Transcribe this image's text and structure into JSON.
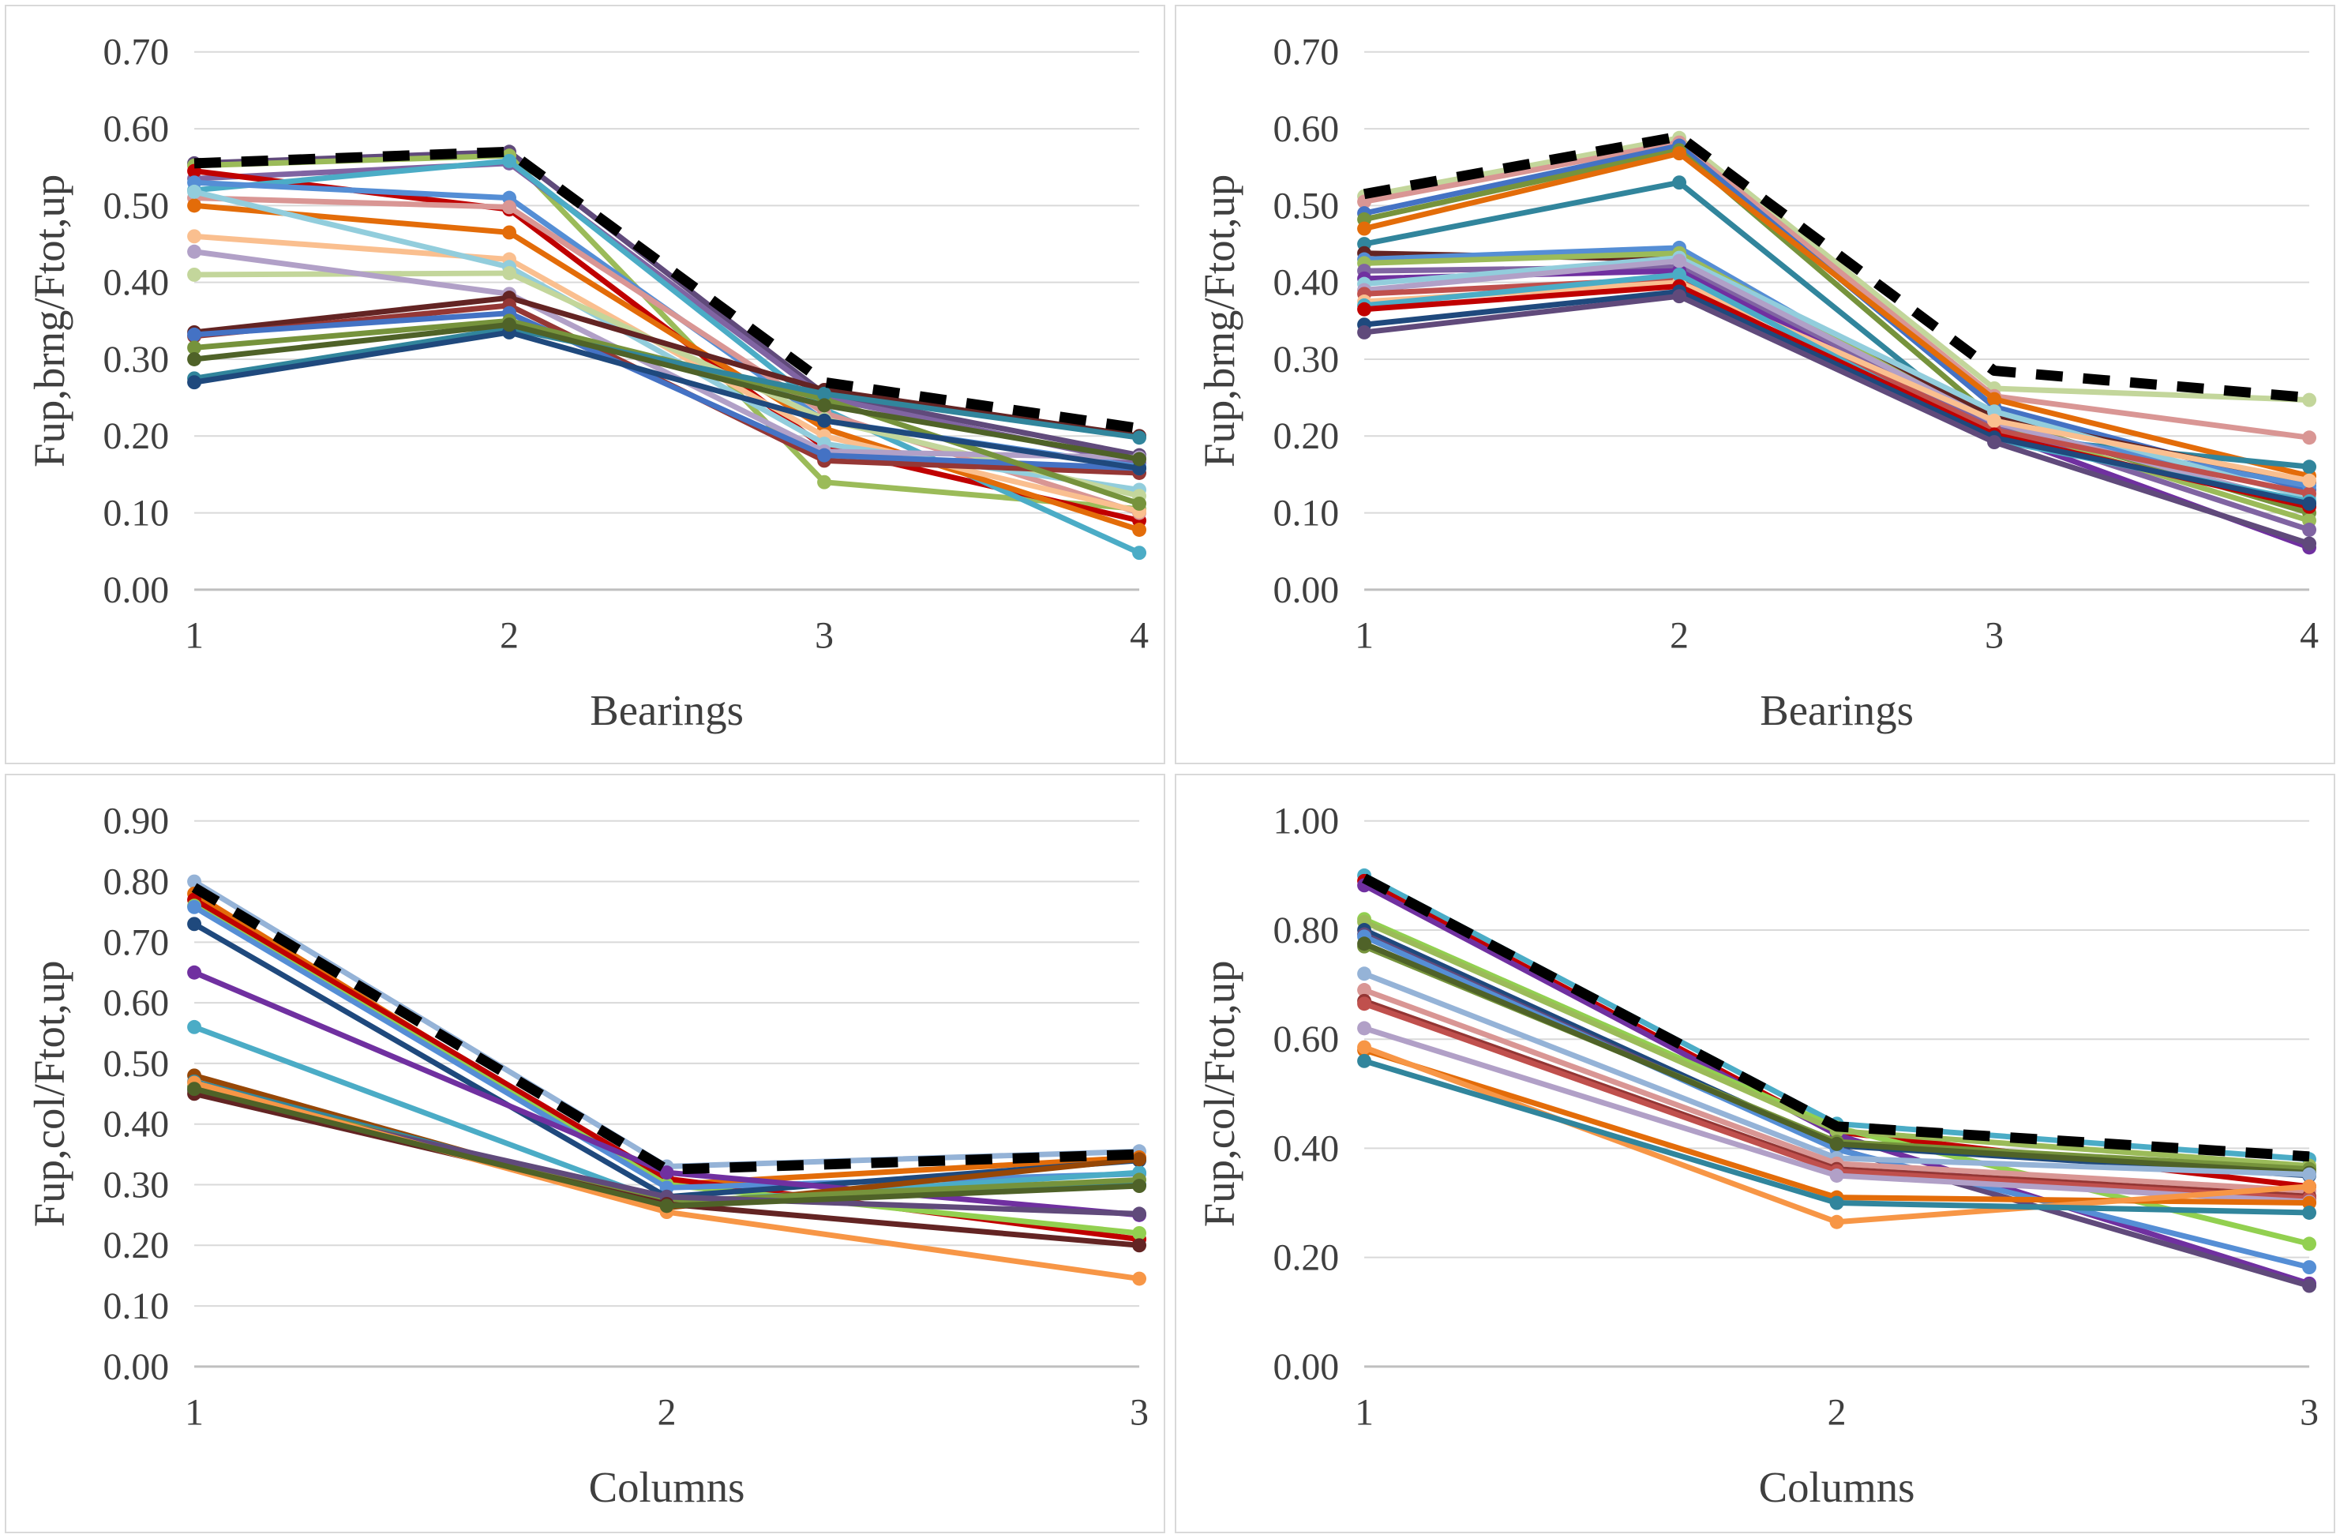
{
  "accent_colors": {
    "gridline": "#d9d9d9",
    "axis_line": "#bfbfbf",
    "envelope": "#000000",
    "panel_border": "#d9d9d9",
    "text": "#3f3f3f"
  },
  "chart_data": [
    {
      "type": "line",
      "position": "top-left",
      "title": "",
      "xlabel": "Bearings",
      "ylabel": "Fup,brng/Ftot,up",
      "x": [
        1,
        2,
        3,
        4
      ],
      "x_tick_labels": [
        "1",
        "2",
        "3",
        "4"
      ],
      "y_tick_labels": [
        "0.00",
        "0.10",
        "0.20",
        "0.30",
        "0.40",
        "0.50",
        "0.60",
        "0.70"
      ],
      "ylim": [
        0.0,
        0.7
      ],
      "grid": true,
      "legend": "none",
      "envelope": {
        "style": "dashed",
        "color": "#000000",
        "values": [
          0.555,
          0.57,
          0.27,
          0.21
        ]
      },
      "series": [
        {
          "color": "#604A7B",
          "values": [
            0.555,
            0.57,
            0.255,
            0.175
          ]
        },
        {
          "color": "#9BBB59",
          "values": [
            0.552,
            0.565,
            0.14,
            0.105
          ]
        },
        {
          "color": "#8064A2",
          "values": [
            0.535,
            0.555,
            0.25,
            0.165
          ]
        },
        {
          "color": "#C00000",
          "values": [
            0.545,
            0.495,
            0.185,
            0.09
          ]
        },
        {
          "color": "#4BACC6",
          "values": [
            0.52,
            0.558,
            0.235,
            0.048
          ]
        },
        {
          "color": "#558ED5",
          "values": [
            0.53,
            0.51,
            0.22,
            0.16
          ]
        },
        {
          "color": "#D99694",
          "values": [
            0.51,
            0.498,
            0.23,
            0.1
          ]
        },
        {
          "color": "#E36C09",
          "values": [
            0.5,
            0.465,
            0.21,
            0.078
          ]
        },
        {
          "color": "#FABF8F",
          "values": [
            0.46,
            0.43,
            0.2,
            0.102
          ]
        },
        {
          "color": "#92CDDC",
          "values": [
            0.518,
            0.42,
            0.19,
            0.13
          ]
        },
        {
          "color": "#C3D69B",
          "values": [
            0.41,
            0.412,
            0.222,
            0.122
          ]
        },
        {
          "color": "#B1A0C7",
          "values": [
            0.44,
            0.385,
            0.18,
            0.172
          ]
        },
        {
          "color": "#632423",
          "values": [
            0.335,
            0.38,
            0.26,
            0.2
          ]
        },
        {
          "color": "#953735",
          "values": [
            0.33,
            0.37,
            0.168,
            0.152
          ]
        },
        {
          "color": "#4472C4",
          "values": [
            0.332,
            0.36,
            0.175,
            0.158
          ]
        },
        {
          "color": "#76933C",
          "values": [
            0.315,
            0.35,
            0.248,
            0.112
          ]
        },
        {
          "color": "#31859C",
          "values": [
            0.275,
            0.34,
            0.255,
            0.198
          ]
        },
        {
          "color": "#1F497D",
          "values": [
            0.27,
            0.335,
            0.22,
            0.158
          ]
        },
        {
          "color": "#4F6228",
          "values": [
            0.3,
            0.345,
            0.24,
            0.17
          ]
        }
      ]
    },
    {
      "type": "line",
      "position": "top-right",
      "title": "",
      "xlabel": "Bearings",
      "ylabel": "Fup,brng/Ftot,up",
      "x": [
        1,
        2,
        3,
        4
      ],
      "x_tick_labels": [
        "1",
        "2",
        "3",
        "4"
      ],
      "y_tick_labels": [
        "0.00",
        "0.10",
        "0.20",
        "0.30",
        "0.40",
        "0.50",
        "0.60",
        "0.70"
      ],
      "ylim": [
        0.0,
        0.7
      ],
      "grid": true,
      "legend": "none",
      "envelope": {
        "style": "dashed",
        "color": "#000000",
        "values": [
          0.515,
          0.59,
          0.285,
          0.25
        ]
      },
      "series": [
        {
          "color": "#C3D69B",
          "values": [
            0.512,
            0.588,
            0.262,
            0.247
          ]
        },
        {
          "color": "#D99694",
          "values": [
            0.505,
            0.582,
            0.252,
            0.198
          ]
        },
        {
          "color": "#4472C4",
          "values": [
            0.49,
            0.578,
            0.238,
            0.13
          ]
        },
        {
          "color": "#76933C",
          "values": [
            0.482,
            0.572,
            0.222,
            0.1
          ]
        },
        {
          "color": "#E36C09",
          "values": [
            0.47,
            0.568,
            0.248,
            0.148
          ]
        },
        {
          "color": "#31859C",
          "values": [
            0.45,
            0.53,
            0.2,
            0.16
          ]
        },
        {
          "color": "#632423",
          "values": [
            0.438,
            0.43,
            0.225,
            0.14
          ]
        },
        {
          "color": "#558ED5",
          "values": [
            0.43,
            0.445,
            0.21,
            0.135
          ]
        },
        {
          "color": "#9BBB59",
          "values": [
            0.425,
            0.438,
            0.215,
            0.09
          ]
        },
        {
          "color": "#8064A2",
          "values": [
            0.415,
            0.42,
            0.212,
            0.078
          ]
        },
        {
          "color": "#7030A0",
          "values": [
            0.405,
            0.415,
            0.205,
            0.055
          ]
        },
        {
          "color": "#92CDDC",
          "values": [
            0.398,
            0.432,
            0.232,
            0.12
          ]
        },
        {
          "color": "#B1A0C7",
          "values": [
            0.39,
            0.428,
            0.218,
            0.11
          ]
        },
        {
          "color": "#C0504D",
          "values": [
            0.385,
            0.405,
            0.208,
            0.125
          ]
        },
        {
          "color": "#FABF8F",
          "values": [
            0.375,
            0.4,
            0.22,
            0.142
          ]
        },
        {
          "color": "#4BACC6",
          "values": [
            0.37,
            0.41,
            0.195,
            0.115
          ]
        },
        {
          "color": "#C00000",
          "values": [
            0.365,
            0.395,
            0.202,
            0.108
          ]
        },
        {
          "color": "#1F497D",
          "values": [
            0.345,
            0.388,
            0.198,
            0.112
          ]
        },
        {
          "color": "#604A7B",
          "values": [
            0.335,
            0.382,
            0.192,
            0.06
          ]
        }
      ]
    },
    {
      "type": "line",
      "position": "bottom-left",
      "title": "",
      "xlabel": "Columns",
      "ylabel": "Fup,col/Ftot,up",
      "x": [
        1,
        2,
        3
      ],
      "x_tick_labels": [
        "1",
        "2",
        "3"
      ],
      "y_tick_labels": [
        "0.00",
        "0.10",
        "0.20",
        "0.30",
        "0.40",
        "0.50",
        "0.60",
        "0.70",
        "0.80",
        "0.90"
      ],
      "ylim": [
        0.0,
        0.9
      ],
      "grid": true,
      "legend": "none",
      "envelope": {
        "style": "dashed",
        "color": "#000000",
        "values": [
          0.79,
          0.325,
          0.35
        ]
      },
      "series": [
        {
          "color": "#95B3D7",
          "values": [
            0.8,
            0.33,
            0.355
          ]
        },
        {
          "color": "#E36C09",
          "values": [
            0.78,
            0.3,
            0.345
          ]
        },
        {
          "color": "#C00000",
          "values": [
            0.77,
            0.31,
            0.21
          ]
        },
        {
          "color": "#92D050",
          "values": [
            0.76,
            0.3,
            0.22
          ]
        },
        {
          "color": "#558ED5",
          "values": [
            0.758,
            0.295,
            0.318
          ]
        },
        {
          "color": "#1F497D",
          "values": [
            0.73,
            0.28,
            0.34
          ]
        },
        {
          "color": "#7030A0",
          "values": [
            0.65,
            0.32,
            0.25
          ]
        },
        {
          "color": "#4BACC6",
          "values": [
            0.56,
            0.27,
            0.32
          ]
        },
        {
          "color": "#974706",
          "values": [
            0.48,
            0.262,
            0.342
          ]
        },
        {
          "color": "#31859C",
          "values": [
            0.47,
            0.268,
            0.3
          ]
        },
        {
          "color": "#76933C",
          "values": [
            0.462,
            0.272,
            0.308
          ]
        },
        {
          "color": "#604A7B",
          "values": [
            0.455,
            0.28,
            0.252
          ]
        },
        {
          "color": "#632423",
          "values": [
            0.45,
            0.268,
            0.2
          ]
        },
        {
          "color": "#F79646",
          "values": [
            0.468,
            0.255,
            0.145
          ]
        },
        {
          "color": "#4F6228",
          "values": [
            0.458,
            0.265,
            0.298
          ]
        }
      ]
    },
    {
      "type": "line",
      "position": "bottom-right",
      "title": "",
      "xlabel": "Columns",
      "ylabel": "Fup,col/Ftot,up",
      "x": [
        1,
        2,
        3
      ],
      "x_tick_labels": [
        "1",
        "2",
        "3"
      ],
      "y_tick_labels": [
        "0.00",
        "0.20",
        "0.40",
        "0.60",
        "0.80",
        "1.00"
      ],
      "ylim": [
        0.0,
        1.0
      ],
      "grid": true,
      "legend": "none",
      "envelope": {
        "style": "dashed",
        "color": "#000000",
        "values": [
          0.895,
          0.44,
          0.385
        ]
      },
      "series": [
        {
          "color": "#4BACC6",
          "values": [
            0.9,
            0.445,
            0.38
          ]
        },
        {
          "color": "#C00000",
          "values": [
            0.89,
            0.43,
            0.33
          ]
        },
        {
          "color": "#7030A0",
          "values": [
            0.882,
            0.425,
            0.152
          ]
        },
        {
          "color": "#92D050",
          "values": [
            0.82,
            0.438,
            0.225
          ]
        },
        {
          "color": "#9BBB59",
          "values": [
            0.815,
            0.432,
            0.368
          ]
        },
        {
          "color": "#1F497D",
          "values": [
            0.8,
            0.405,
            0.35
          ]
        },
        {
          "color": "#604A7B",
          "values": [
            0.792,
            0.4,
            0.148
          ]
        },
        {
          "color": "#558ED5",
          "values": [
            0.788,
            0.398,
            0.182
          ]
        },
        {
          "color": "#76933C",
          "values": [
            0.77,
            0.412,
            0.362
          ]
        },
        {
          "color": "#4F6228",
          "values": [
            0.775,
            0.408,
            0.355
          ]
        },
        {
          "color": "#95B3D7",
          "values": [
            0.72,
            0.382,
            0.352
          ]
        },
        {
          "color": "#D99694",
          "values": [
            0.69,
            0.372,
            0.322
          ]
        },
        {
          "color": "#943634",
          "values": [
            0.67,
            0.362,
            0.312
          ]
        },
        {
          "color": "#C0504D",
          "values": [
            0.665,
            0.358,
            0.308
          ]
        },
        {
          "color": "#B1A0C7",
          "values": [
            0.62,
            0.35,
            0.302
          ]
        },
        {
          "color": "#E36C09",
          "values": [
            0.58,
            0.31,
            0.3
          ]
        },
        {
          "color": "#F79646",
          "values": [
            0.585,
            0.265,
            0.33
          ]
        },
        {
          "color": "#31859C",
          "values": [
            0.56,
            0.3,
            0.282
          ]
        }
      ]
    }
  ]
}
